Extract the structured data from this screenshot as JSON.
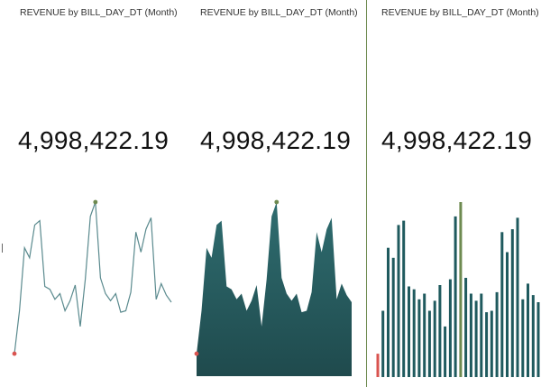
{
  "colors": {
    "line": "#5a8a8e",
    "area_top": "#2f6d70",
    "area_bottom": "#1f4a4d",
    "bar": "#1f5a5e",
    "min_marker": "#d9534f",
    "max_marker": "#6e8a50",
    "divider": "#6e8a50"
  },
  "panels": [
    {
      "title": "REVENUE by BILL_DAY_DT (Month)",
      "kpi": "4,998,422.19",
      "style": "line"
    },
    {
      "title": "REVENUE by BILL_DAY_DT (Month)",
      "kpi": "4,998,422.19",
      "style": "area"
    },
    {
      "title": "REVENUE by BILL_DAY_DT (Month)",
      "kpi": "4,998,422.19",
      "style": "bar"
    }
  ],
  "chart_data": {
    "type": "line",
    "title": "REVENUE by BILL_DAY_DT (Month)",
    "xlabel": "",
    "ylabel": "",
    "note": "Relative monthly values (sparkline, no axes shown). Index 0 is the minimum, index 16 is the maximum.",
    "values": [
      5,
      35,
      79,
      72,
      95,
      98,
      52,
      50,
      43,
      47,
      35,
      42,
      53,
      24,
      57,
      101,
      111,
      58,
      47,
      42,
      47,
      34,
      35,
      48,
      90,
      76,
      92,
      100,
      43,
      54,
      46,
      41
    ]
  }
}
